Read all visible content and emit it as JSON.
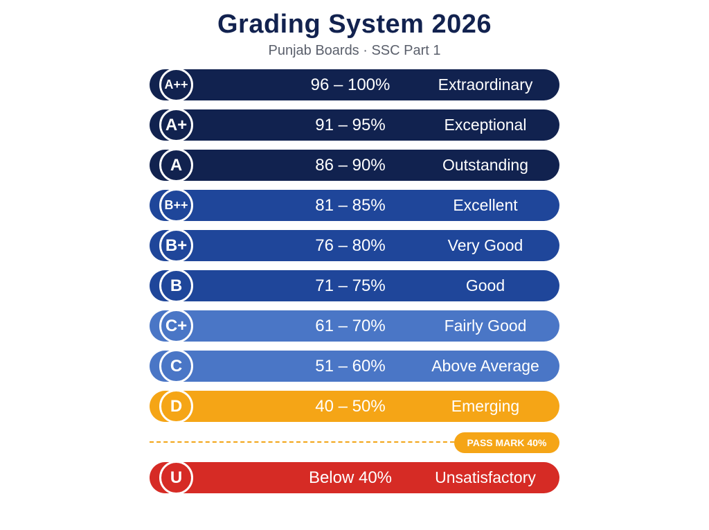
{
  "header": {
    "title": "Grading System 2026",
    "subtitle": "Punjab Boards · SSC Part 1"
  },
  "colors": {
    "navy": "#11224f",
    "blue": "#1f469a",
    "light_blue": "#4a76c6",
    "orange": "#f5a516",
    "red": "#d62b25"
  },
  "grades": [
    {
      "grade": "A++",
      "range": "96 – 100%",
      "remark": "Extraordinary"
    },
    {
      "grade": "A+",
      "range": "91 – 95%",
      "remark": "Exceptional"
    },
    {
      "grade": "A",
      "range": "86 – 90%",
      "remark": "Outstanding"
    },
    {
      "grade": "B++",
      "range": "81 – 85%",
      "remark": "Excellent"
    },
    {
      "grade": "B+",
      "range": "76 – 80%",
      "remark": "Very Good"
    },
    {
      "grade": "B",
      "range": "71 – 75%",
      "remark": "Good"
    },
    {
      "grade": "C+",
      "range": "61 – 70%",
      "remark": "Fairly Good"
    },
    {
      "grade": "C",
      "range": "51 – 60%",
      "remark": "Above Average"
    },
    {
      "grade": "D",
      "range": "40 – 50%",
      "remark": "Emerging"
    },
    {
      "grade": "U",
      "range": "Below 40%",
      "remark": "Unsatisfactory"
    }
  ],
  "pass_mark": {
    "label": "PASS MARK 40%"
  }
}
